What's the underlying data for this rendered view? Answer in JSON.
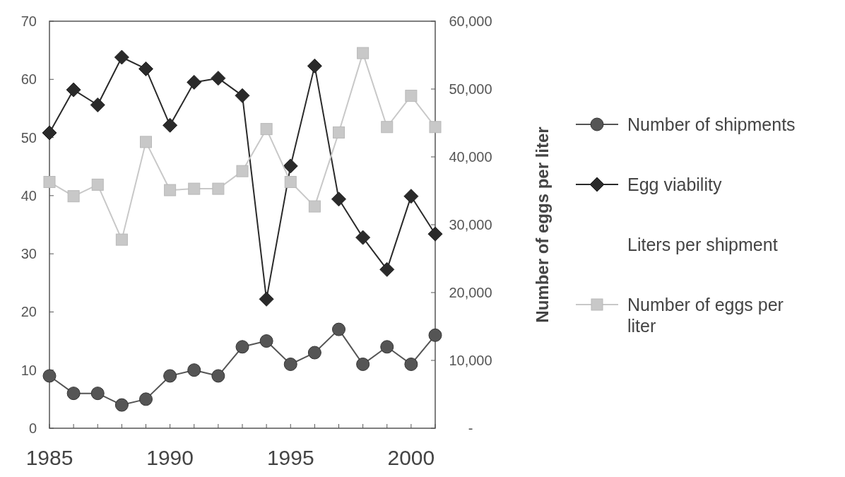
{
  "chart_data": {
    "type": "line",
    "x": [
      1985,
      1986,
      1987,
      1988,
      1989,
      1990,
      1991,
      1992,
      1993,
      1994,
      1995,
      1996,
      1997,
      1998,
      1999,
      2000,
      2001
    ],
    "xlim": [
      1985,
      2001
    ],
    "xticks": [
      1985,
      1990,
      1995,
      2000
    ],
    "ylim": [
      0,
      70
    ],
    "yticks": [
      0,
      10,
      20,
      30,
      40,
      50,
      60,
      70
    ],
    "y2lim": [
      0,
      60000
    ],
    "y2ticks": [
      {
        "value": 0,
        "label": "-"
      },
      {
        "value": 10000,
        "label": "10,000"
      },
      {
        "value": 20000,
        "label": "20,000"
      },
      {
        "value": 30000,
        "label": "30,000"
      },
      {
        "value": 40000,
        "label": "40,000"
      },
      {
        "value": 50000,
        "label": "50,000"
      },
      {
        "value": 60000,
        "label": "60,000"
      }
    ],
    "y2label": "Number of eggs per liter",
    "legend": "right",
    "series": [
      {
        "name": "Number of shipments",
        "color": "#555555",
        "marker": "circle",
        "values": [
          9,
          6,
          6,
          4,
          5,
          9,
          10,
          9,
          14,
          15,
          11,
          13,
          17,
          11,
          14,
          11,
          16
        ]
      },
      {
        "name": "Egg viability",
        "color": "#2a2a2a",
        "marker": "diamond",
        "values": [
          50.8,
          58.2,
          55.6,
          63.8,
          61.8,
          52.1,
          59.5,
          60.2,
          57.2,
          22.2,
          45.1,
          62.3,
          39.4,
          32.8,
          27.3,
          39.9,
          33.4
        ]
      },
      {
        "name": "Liters per shipment",
        "marker": "none",
        "values": [
          null,
          null,
          null,
          null,
          null,
          null,
          null,
          null,
          null,
          null,
          null,
          null,
          null,
          null,
          null,
          null,
          null
        ]
      },
      {
        "name": "Number of eggs per liter",
        "color": "#c8c8c8",
        "marker": "square",
        "axis": "y2",
        "values": [
          36300,
          34200,
          35900,
          27800,
          42200,
          35100,
          35300,
          35300,
          37900,
          44100,
          36300,
          32700,
          43600,
          55300,
          44400,
          49000,
          44400
        ]
      }
    ]
  }
}
